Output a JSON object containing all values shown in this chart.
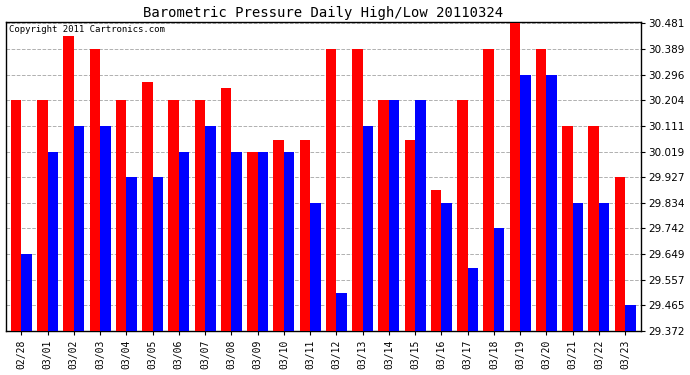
{
  "title": "Barometric Pressure Daily High/Low 20110324",
  "copyright": "Copyright 2011 Cartronics.com",
  "dates": [
    "02/28",
    "03/01",
    "03/02",
    "03/03",
    "03/04",
    "03/05",
    "03/06",
    "03/07",
    "03/08",
    "03/09",
    "03/10",
    "03/11",
    "03/12",
    "03/13",
    "03/14",
    "03/15",
    "03/16",
    "03/17",
    "03/18",
    "03/19",
    "03/20",
    "03/21",
    "03/22",
    "03/23"
  ],
  "highs": [
    30.204,
    30.204,
    30.435,
    30.389,
    30.204,
    30.27,
    30.204,
    30.204,
    30.25,
    30.019,
    30.06,
    30.06,
    30.389,
    30.389,
    30.204,
    30.06,
    29.88,
    30.204,
    30.389,
    30.481,
    30.389,
    30.111,
    30.111,
    29.927
  ],
  "lows": [
    29.649,
    30.019,
    30.111,
    30.111,
    29.927,
    29.927,
    30.019,
    30.111,
    30.019,
    30.019,
    30.019,
    29.834,
    29.51,
    30.111,
    30.204,
    30.204,
    29.834,
    29.6,
    29.742,
    30.296,
    30.296,
    29.834,
    29.834,
    29.465
  ],
  "high_color": "#ff0000",
  "low_color": "#0000ff",
  "bg_color": "#ffffff",
  "plot_bg": "#ffffff",
  "grid_color": "#b0b0b0",
  "ymin": 29.372,
  "ymax": 30.481,
  "yticks": [
    29.372,
    29.465,
    29.557,
    29.649,
    29.742,
    29.834,
    29.927,
    30.019,
    30.111,
    30.204,
    30.296,
    30.389,
    30.481
  ]
}
